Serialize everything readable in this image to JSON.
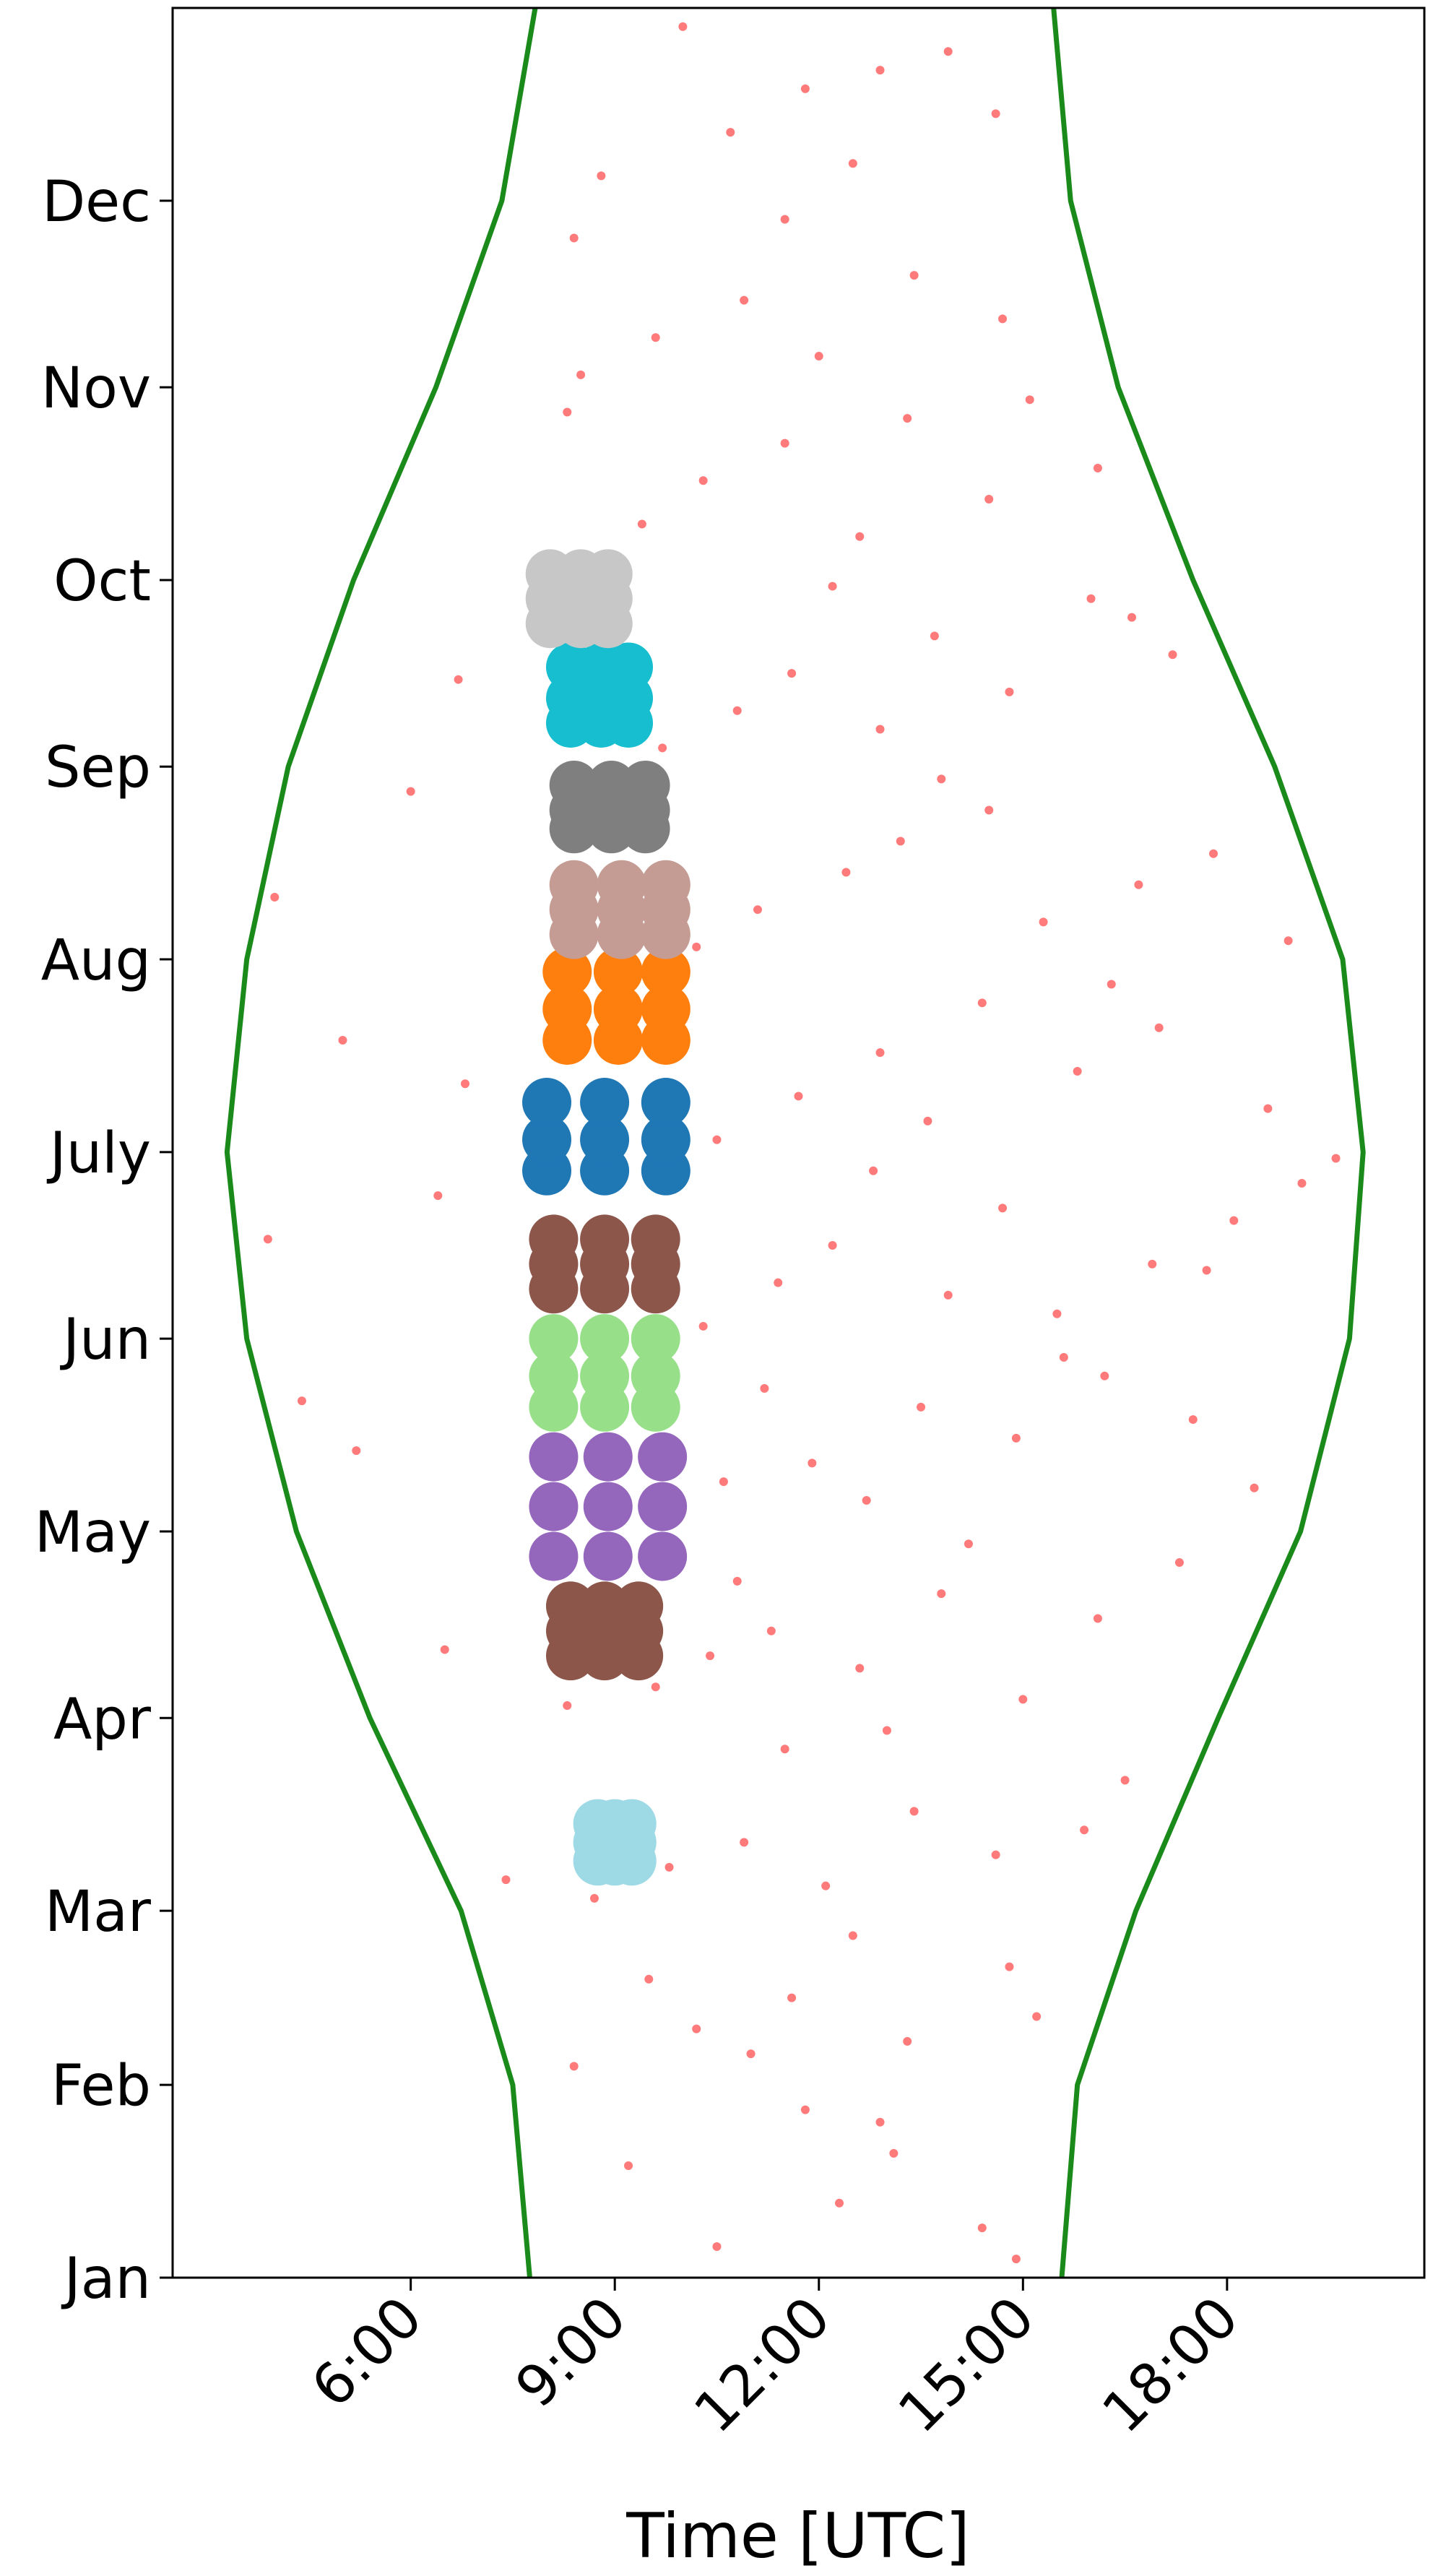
{
  "chart_data": {
    "type": "scatter",
    "xlabel": "Time [UTC]",
    "xlim": [
      2.5,
      20.9
    ],
    "xticks": [
      {
        "value": 6,
        "label": "6:00"
      },
      {
        "value": 9,
        "label": "9:00"
      },
      {
        "value": 12,
        "label": "12:00"
      },
      {
        "value": 15,
        "label": "15:00"
      },
      {
        "value": 18,
        "label": "18:00"
      }
    ],
    "ylim": [
      0,
      365
    ],
    "yticks": [
      {
        "value": 0,
        "label": "Jan"
      },
      {
        "value": 31,
        "label": "Feb"
      },
      {
        "value": 59,
        "label": "Mar"
      },
      {
        "value": 90,
        "label": "Apr"
      },
      {
        "value": 120,
        "label": "May"
      },
      {
        "value": 151,
        "label": "Jun"
      },
      {
        "value": 181,
        "label": "July"
      },
      {
        "value": 212,
        "label": "Aug"
      },
      {
        "value": 243,
        "label": "Sep"
      },
      {
        "value": 273,
        "label": "Oct"
      },
      {
        "value": 304,
        "label": "Nov"
      },
      {
        "value": 334,
        "label": "Dec"
      }
    ],
    "series": [
      {
        "type": "line",
        "color": "#1a8a1a",
        "x": [
          7.75,
          7.5,
          6.74,
          5.4,
          4.32,
          3.59,
          3.3,
          3.59,
          4.2,
          5.16,
          6.37,
          7.34,
          7.83
        ],
        "y": [
          0,
          31,
          59,
          90,
          120,
          151,
          181,
          212,
          243,
          273,
          304,
          334,
          365
        ]
      },
      {
        "type": "line",
        "color": "#1a8a1a",
        "x": [
          15.57,
          15.8,
          16.66,
          17.87,
          19.08,
          19.8,
          20.0,
          19.7,
          18.7,
          17.5,
          16.4,
          15.7,
          15.45
        ],
        "y": [
          0,
          31,
          59,
          90,
          120,
          151,
          181,
          212,
          243,
          273,
          304,
          334,
          365
        ]
      },
      {
        "color": "#ff4d4d",
        "x": [
          10.5,
          12.3,
          13.1,
          14.4,
          11.8,
          9.2,
          14.9,
          12.9,
          8.4,
          10.2,
          11.6,
          13.3,
          14.8,
          12.5,
          15.2,
          9.5,
          11.0,
          8.7,
          9.8,
          10.9,
          12.1,
          13.4,
          14.6,
          15.9,
          16.5,
          11.5,
          7.4,
          13.0,
          8.3,
          9.6,
          10.4,
          11.3,
          12.6,
          13.8,
          15.0,
          16.1,
          17.3,
          6.5,
          14.2,
          10.8,
          9.9,
          10.6,
          11.9,
          12.7,
          13.5,
          14.9,
          16.2,
          17.5,
          18.4,
          5.2,
          4.4,
          15.6,
          11.2,
          10.3,
          11.4,
          12.2,
          13.9,
          14.7,
          15.5,
          16.9,
          18.1,
          19.1,
          3.9,
          6.4,
          12.8,
          17.7,
          10.5,
          11.7,
          12.9,
          13.6,
          14.4,
          15.8,
          17.0,
          18.6,
          19.6,
          5.0,
          6.8,
          16.3,
          10.2,
          11.1,
          12.4,
          13.2,
          14.5,
          15.3,
          16.7,
          17.8,
          18.9,
          4.0,
          6.0,
          13.8,
          9.7,
          10.8,
          11.6,
          12.9,
          13.7,
          14.8,
          16.0,
          16.6,
          17.2,
          6.7,
          12.2,
          8.6,
          9.4,
          10.3,
          11.5,
          12.6,
          13.3,
          14.5,
          15.1,
          8.3,
          16.1,
          8.5,
          9.6,
          10.9,
          12.0,
          13.4,
          14.7,
          8.4,
          11.5,
          8.8,
          10.7,
          11.8,
          12.5,
          13.9,
          14.6,
          10.0,
          12.9
        ],
        "y": [
          5,
          12,
          20,
          8,
          27,
          18,
          3,
          25,
          34,
          40,
          45,
          38,
          50,
          55,
          42,
          48,
          36,
          61,
          66,
          70,
          63,
          75,
          68,
          72,
          80,
          85,
          64,
          88,
          92,
          95,
          100,
          104,
          98,
          110,
          93,
          106,
          115,
          101,
          118,
          112,
          122,
          128,
          131,
          125,
          140,
          135,
          145,
          138,
          127,
          133,
          141,
          148,
          143,
          153,
          160,
          166,
          158,
          172,
          155,
          163,
          170,
          176,
          167,
          174,
          178,
          162,
          183,
          190,
          197,
          186,
          205,
          194,
          201,
          188,
          180,
          199,
          192,
          208,
          214,
          220,
          226,
          231,
          236,
          218,
          224,
          229,
          215,
          222,
          239,
          241,
          246,
          252,
          258,
          249,
          264,
          255,
          270,
          267,
          261,
          257,
          272,
          276,
          282,
          289,
          295,
          280,
          299,
          286,
          302,
          300,
          291,
          306,
          312,
          318,
          309,
          322,
          315,
          328,
          331,
          338,
          345,
          352,
          340,
          358,
          348,
          362,
          355
        ]
      },
      {
        "type": "cluster",
        "color": "#9edae5",
        "x": [
          8.75,
          9.0,
          9.25,
          8.75,
          9.0,
          9.25,
          8.75,
          9.0,
          9.25
        ],
        "y": [
          67,
          67,
          67,
          70,
          70,
          70,
          73,
          73,
          73
        ]
      },
      {
        "type": "cluster",
        "color": "#8c564b",
        "x": [
          8.35,
          8.85,
          9.35,
          8.35,
          8.85,
          9.35,
          8.35,
          8.85,
          9.35
        ],
        "y": [
          100,
          100,
          100,
          104,
          104,
          104,
          108,
          108,
          108
        ]
      },
      {
        "type": "cluster",
        "color": "#9467bd",
        "x": [
          8.1,
          8.9,
          9.7,
          8.1,
          8.9,
          9.7,
          8.1,
          8.9,
          9.7
        ],
        "y": [
          116,
          116,
          116,
          124,
          124,
          124,
          132,
          132,
          132
        ]
      },
      {
        "type": "cluster",
        "color": "#98df8a",
        "x": [
          8.1,
          8.85,
          9.6,
          8.1,
          8.85,
          9.6,
          8.1,
          8.85,
          9.6
        ],
        "y": [
          140,
          140,
          140,
          145,
          145,
          145,
          151,
          151,
          151
        ]
      },
      {
        "type": "cluster",
        "color": "#8c564b",
        "x": [
          8.1,
          8.85,
          9.6,
          8.1,
          8.85,
          9.6,
          8.1,
          8.85,
          9.6
        ],
        "y": [
          159,
          159,
          159,
          163,
          163,
          163,
          167,
          167,
          167
        ]
      },
      {
        "type": "cluster",
        "color": "#1f77b4",
        "x": [
          8.0,
          8.85,
          9.75,
          8.0,
          8.85,
          9.75,
          8.0,
          8.85,
          9.75
        ],
        "y": [
          178,
          178,
          178,
          183,
          183,
          183,
          189,
          189,
          189
        ]
      },
      {
        "type": "cluster",
        "color": "#ff7f0e",
        "x": [
          8.3,
          9.05,
          9.75,
          8.3,
          9.05,
          9.75,
          8.3,
          9.05,
          9.75
        ],
        "y": [
          199,
          199,
          199,
          204,
          204,
          204,
          210,
          210,
          210
        ]
      },
      {
        "type": "cluster",
        "color": "#c49c94",
        "x": [
          8.4,
          9.1,
          9.75,
          8.4,
          9.1,
          9.75,
          8.4,
          9.1,
          9.75
        ],
        "y": [
          216,
          216,
          216,
          220,
          220,
          220,
          224,
          224,
          224
        ]
      },
      {
        "type": "cluster",
        "color": "#7f7f7f",
        "x": [
          8.4,
          8.95,
          9.45,
          8.4,
          8.95,
          9.45,
          8.4,
          8.95,
          9.45
        ],
        "y": [
          233,
          233,
          233,
          236,
          236,
          236,
          240,
          240,
          240
        ]
      },
      {
        "type": "cluster",
        "color": "#17becf",
        "x": [
          8.35,
          8.8,
          9.2,
          8.35,
          8.8,
          9.2,
          8.35,
          8.8,
          9.2
        ],
        "y": [
          250,
          250,
          250,
          254,
          254,
          254,
          259,
          259,
          259
        ]
      },
      {
        "type": "cluster",
        "color": "#c7c7c7",
        "x": [
          8.05,
          8.5,
          8.9,
          8.05,
          8.5,
          8.9,
          8.05,
          8.5,
          8.9
        ],
        "y": [
          266,
          266,
          266,
          270,
          270,
          270,
          274,
          274,
          274
        ]
      }
    ]
  }
}
